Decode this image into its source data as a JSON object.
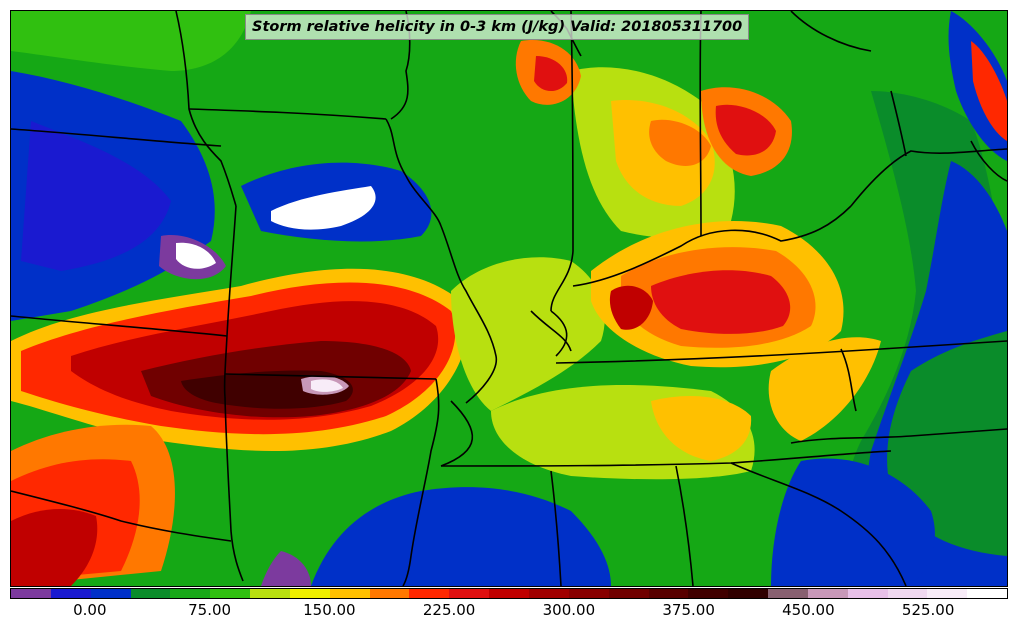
{
  "title": "Storm relative helicity in 0-3 km (J/kg) Valid: 201805311700",
  "colorbar": {
    "colors": [
      "#7c3a9e",
      "#1a1ad0",
      "#0030c8",
      "#0a8c2a",
      "#18a818",
      "#30c010",
      "#b8e010",
      "#f0f000",
      "#ffc000",
      "#ff7800",
      "#ff2800",
      "#e01010",
      "#c00000",
      "#a00000",
      "#880000",
      "#700000",
      "#580000",
      "#400000",
      "#300000",
      "#886070",
      "#c898b8",
      "#e8c0e8",
      "#f0d8f0",
      "#f8ecf8",
      "#ffffff"
    ],
    "ticks": [
      {
        "label": "0.00",
        "pos": 0.08
      },
      {
        "label": "75.00",
        "pos": 0.2
      },
      {
        "label": "150.00",
        "pos": 0.32
      },
      {
        "label": "225.00",
        "pos": 0.44
      },
      {
        "label": "300.00",
        "pos": 0.56
      },
      {
        "label": "375.00",
        "pos": 0.68
      },
      {
        "label": "450.00",
        "pos": 0.8
      },
      {
        "label": "525.00",
        "pos": 0.92
      }
    ]
  },
  "map": {
    "background_color": "#15a815",
    "border_color": "#000000"
  }
}
